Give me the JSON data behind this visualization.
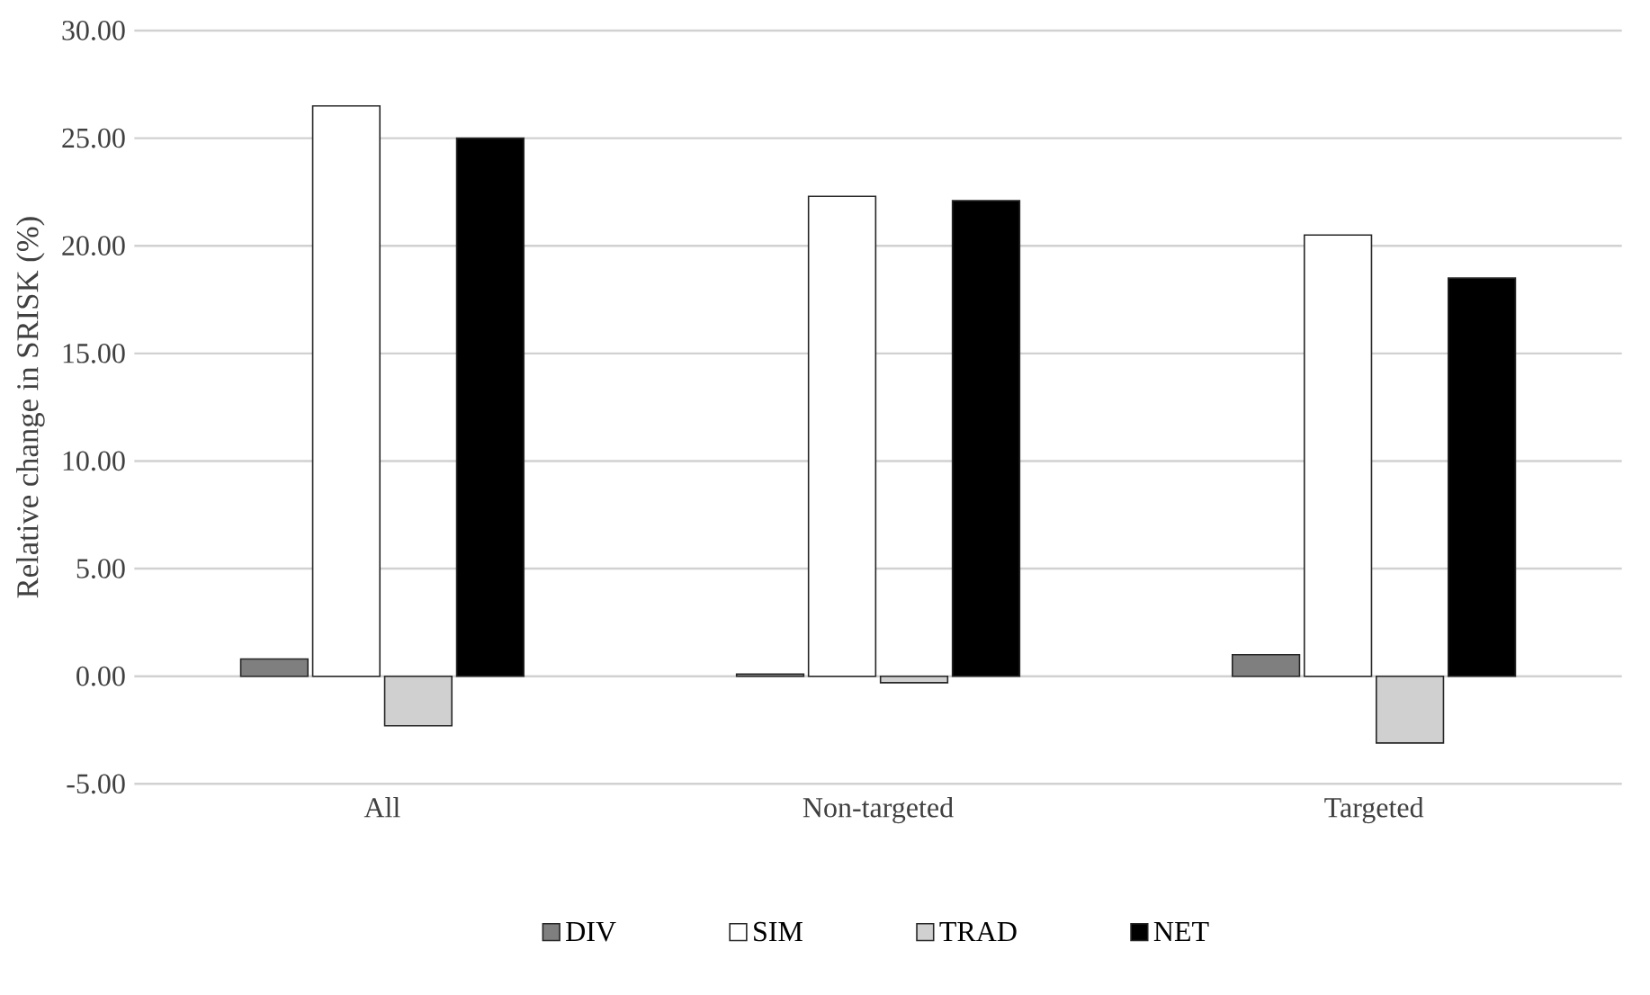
{
  "chart_data": {
    "type": "bar",
    "ylabel": "Relative change in SRISK (%)",
    "categories": [
      "All",
      "Non-targeted",
      "Targeted"
    ],
    "series": [
      {
        "name": "DIV",
        "color": "#7f7f7f",
        "values": [
          0.8,
          0.1,
          1.0
        ]
      },
      {
        "name": "SIM",
        "color": "#ffffff",
        "values": [
          26.5,
          22.3,
          20.5
        ]
      },
      {
        "name": "TRAD",
        "color": "#d0d0d0",
        "values": [
          -2.3,
          -0.3,
          -3.1
        ]
      },
      {
        "name": "NET",
        "color": "#000000",
        "values": [
          25.0,
          22.1,
          18.5
        ]
      }
    ],
    "ylim": [
      -5,
      30
    ],
    "yticks": [
      {
        "value": -5,
        "label": "-5.00"
      },
      {
        "value": 0,
        "label": "0.00"
      },
      {
        "value": 5,
        "label": "5.00"
      },
      {
        "value": 10,
        "label": "10.00"
      },
      {
        "value": 15,
        "label": "15.00"
      },
      {
        "value": 20,
        "label": "20.00"
      },
      {
        "value": 25,
        "label": "25.00"
      },
      {
        "value": 30,
        "label": "30.00"
      }
    ],
    "grid": "y",
    "legend": "bottom"
  }
}
